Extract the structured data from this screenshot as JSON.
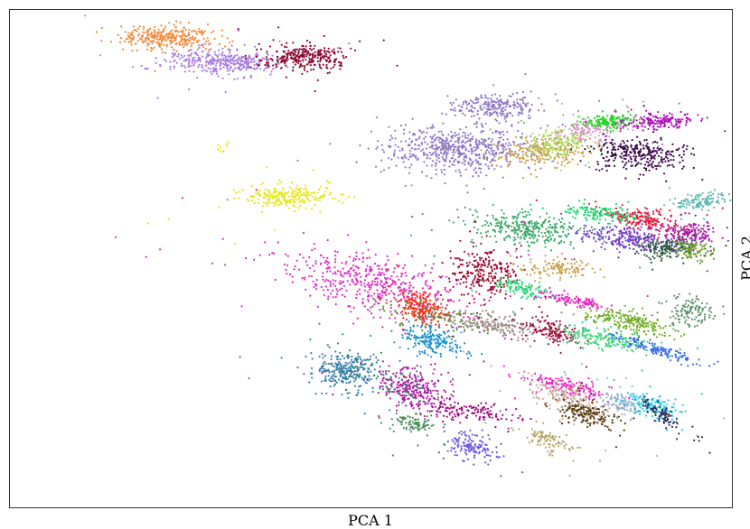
{
  "chart_data": {
    "type": "scatter",
    "xlabel": "PCA 1",
    "ylabel": "PCA 2",
    "xlim": [
      0,
      100
    ],
    "ylim": [
      0,
      100
    ],
    "grid": false,
    "legend": "none",
    "clusters": [
      {
        "color": "#f28a3a",
        "cx": 22,
        "cy": 94.5,
        "sx": 3.2,
        "sy": 1.2,
        "n": 320,
        "angle": 0
      },
      {
        "color": "#a77ee0",
        "cx": 29.5,
        "cy": 89.5,
        "sx": 4.2,
        "sy": 1.2,
        "n": 380,
        "angle": 0
      },
      {
        "color": "#8e0a2f",
        "cx": 41,
        "cy": 90.5,
        "sx": 3,
        "sy": 1.3,
        "n": 300,
        "angle": 0
      },
      {
        "color": "#e6e619",
        "cx": 38.5,
        "cy": 62.5,
        "sx": 3.2,
        "sy": 1.2,
        "n": 240,
        "angle": 0
      },
      {
        "color": "#e6e619",
        "cx": 29.5,
        "cy": 72,
        "sx": 0.8,
        "sy": 0.8,
        "n": 10,
        "angle": 0
      },
      {
        "color": "#8f78c8",
        "cx": 67,
        "cy": 80.5,
        "sx": 2.8,
        "sy": 1.2,
        "n": 240,
        "angle": 0
      },
      {
        "color": "#8f78c8",
        "cx": 62,
        "cy": 72,
        "sx": 5.5,
        "sy": 2.2,
        "n": 600,
        "angle": 0
      },
      {
        "color": "#c8a04a",
        "cx": 74,
        "cy": 71.5,
        "sx": 3,
        "sy": 1.6,
        "n": 260,
        "angle": 8
      },
      {
        "color": "#a8e05a",
        "cx": 76,
        "cy": 73,
        "sx": 2,
        "sy": 1.3,
        "n": 140,
        "angle": 5
      },
      {
        "color": "#d896c8",
        "cx": 80.5,
        "cy": 76,
        "sx": 2.2,
        "sy": 1.1,
        "n": 160,
        "angle": 10
      },
      {
        "color": "#22d622",
        "cx": 83,
        "cy": 77.5,
        "sx": 1.8,
        "sy": 0.8,
        "n": 140,
        "angle": 5
      },
      {
        "color": "#b010b8",
        "cx": 90,
        "cy": 77.5,
        "sx": 2.5,
        "sy": 0.8,
        "n": 180,
        "angle": 5
      },
      {
        "color": "#3c0a4e",
        "cx": 87,
        "cy": 71,
        "sx": 3,
        "sy": 1.4,
        "n": 300,
        "angle": -5
      },
      {
        "color": "#5fb8b0",
        "cx": 95.5,
        "cy": 61.5,
        "sx": 2.2,
        "sy": 0.8,
        "n": 130,
        "angle": 10
      },
      {
        "color": "#3caa6a",
        "cx": 72,
        "cy": 56,
        "sx": 3.8,
        "sy": 1.6,
        "n": 350,
        "angle": -10
      },
      {
        "color": "#e61e46",
        "cx": 87.5,
        "cy": 58,
        "sx": 2.8,
        "sy": 1,
        "n": 200,
        "angle": -12
      },
      {
        "color": "#7a40cc",
        "cx": 86,
        "cy": 54,
        "sx": 3.5,
        "sy": 1.1,
        "n": 260,
        "angle": -10
      },
      {
        "color": "#b01aa8",
        "cx": 94,
        "cy": 55,
        "sx": 1.8,
        "sy": 1.2,
        "n": 160,
        "angle": 0
      },
      {
        "color": "#2a5a3a",
        "cx": 91,
        "cy": 52,
        "sx": 2.2,
        "sy": 1,
        "n": 160,
        "angle": 0
      },
      {
        "color": "#6c9e2a",
        "cx": 94.5,
        "cy": 51.5,
        "sx": 1.6,
        "sy": 0.9,
        "n": 90,
        "angle": -15
      },
      {
        "color": "#1ad66a",
        "cx": 82,
        "cy": 59,
        "sx": 2.5,
        "sy": 0.8,
        "n": 140,
        "angle": -10
      },
      {
        "color": "#9e0a2e",
        "cx": 66,
        "cy": 47,
        "sx": 2.6,
        "sy": 2.4,
        "n": 260,
        "angle": -35
      },
      {
        "color": "#c8a04a",
        "cx": 76,
        "cy": 48,
        "sx": 2.2,
        "sy": 0.9,
        "n": 120,
        "angle": 0
      },
      {
        "color": "#2ad67a",
        "cx": 71,
        "cy": 44,
        "sx": 2.2,
        "sy": 0.7,
        "n": 120,
        "angle": -15
      },
      {
        "color": "#f020c8",
        "cx": 78,
        "cy": 41.5,
        "sx": 2.3,
        "sy": 0.5,
        "n": 120,
        "angle": -15
      },
      {
        "color": "#e228c8",
        "cx": 51,
        "cy": 45,
        "sx": 7,
        "sy": 2.6,
        "n": 520,
        "angle": -20
      },
      {
        "color": "#f03212",
        "cx": 57,
        "cy": 40,
        "sx": 1.8,
        "sy": 1.4,
        "n": 220,
        "angle": -40
      },
      {
        "color": "#1a90d0",
        "cx": 58.5,
        "cy": 33.5,
        "sx": 2,
        "sy": 1.4,
        "n": 200,
        "angle": -30
      },
      {
        "color": "#5a8f3a",
        "cx": 60,
        "cy": 38,
        "sx": 4.5,
        "sy": 1.2,
        "n": 100,
        "angle": -10
      },
      {
        "color": "#a08a86",
        "cx": 67,
        "cy": 36.5,
        "sx": 3,
        "sy": 1.2,
        "n": 170,
        "angle": -15
      },
      {
        "color": "#a00f3a",
        "cx": 75,
        "cy": 35.5,
        "sx": 2.3,
        "sy": 1,
        "n": 150,
        "angle": -25
      },
      {
        "color": "#6aaa1a",
        "cx": 85.5,
        "cy": 37.5,
        "sx": 3,
        "sy": 1,
        "n": 200,
        "angle": -20
      },
      {
        "color": "#3ad67a",
        "cx": 82.5,
        "cy": 34,
        "sx": 3,
        "sy": 1,
        "n": 180,
        "angle": -15
      },
      {
        "color": "#3c6ae6",
        "cx": 89,
        "cy": 32,
        "sx": 3,
        "sy": 0.5,
        "n": 150,
        "angle": -25
      },
      {
        "color": "#5a8f6a",
        "cx": 94,
        "cy": 39.5,
        "sx": 1.6,
        "sy": 1.4,
        "n": 120,
        "angle": -20
      },
      {
        "color": "#3a7fa8",
        "cx": 46.5,
        "cy": 27.5,
        "sx": 2.5,
        "sy": 1.8,
        "n": 280,
        "angle": -25
      },
      {
        "color": "#b21aa8",
        "cx": 56,
        "cy": 24,
        "sx": 2.6,
        "sy": 1.8,
        "n": 280,
        "angle": -25
      },
      {
        "color": "#9e0a7e",
        "cx": 63,
        "cy": 19.5,
        "sx": 3.5,
        "sy": 0.9,
        "n": 140,
        "angle": -10
      },
      {
        "color": "#f020c8",
        "cx": 77,
        "cy": 24.5,
        "sx": 2.8,
        "sy": 0.8,
        "n": 150,
        "angle": -20
      },
      {
        "color": "#c8aa9a",
        "cx": 77,
        "cy": 22,
        "sx": 3.5,
        "sy": 1.5,
        "n": 200,
        "angle": -30
      },
      {
        "color": "#5a3a0a",
        "cx": 80,
        "cy": 19,
        "sx": 2.5,
        "sy": 1.1,
        "n": 160,
        "angle": -20
      },
      {
        "color": "#9ab6d0",
        "cx": 84.5,
        "cy": 21,
        "sx": 1.6,
        "sy": 1.1,
        "n": 110,
        "angle": -20
      },
      {
        "color": "#2ac6e6",
        "cx": 89,
        "cy": 20.5,
        "sx": 1.8,
        "sy": 1.1,
        "n": 150,
        "angle": -25
      },
      {
        "color": "#2a2a5a",
        "cx": 90,
        "cy": 19,
        "sx": 2.8,
        "sy": 0.6,
        "n": 80,
        "angle": -45
      },
      {
        "color": "#6a5ae0",
        "cx": 64,
        "cy": 12.5,
        "sx": 1.8,
        "sy": 1.4,
        "n": 140,
        "angle": -30
      },
      {
        "color": "#b8a66a",
        "cx": 74.5,
        "cy": 13.5,
        "sx": 2,
        "sy": 1,
        "n": 100,
        "angle": -30
      },
      {
        "color": "#4a8f5a",
        "cx": 56,
        "cy": 17,
        "sx": 1.4,
        "sy": 1,
        "n": 90,
        "angle": -15
      },
      {
        "color": "#2a8f6a",
        "cx": 53,
        "cy": 25.5,
        "sx": 3,
        "sy": 1.5,
        "n": 60,
        "angle": -20
      }
    ]
  }
}
